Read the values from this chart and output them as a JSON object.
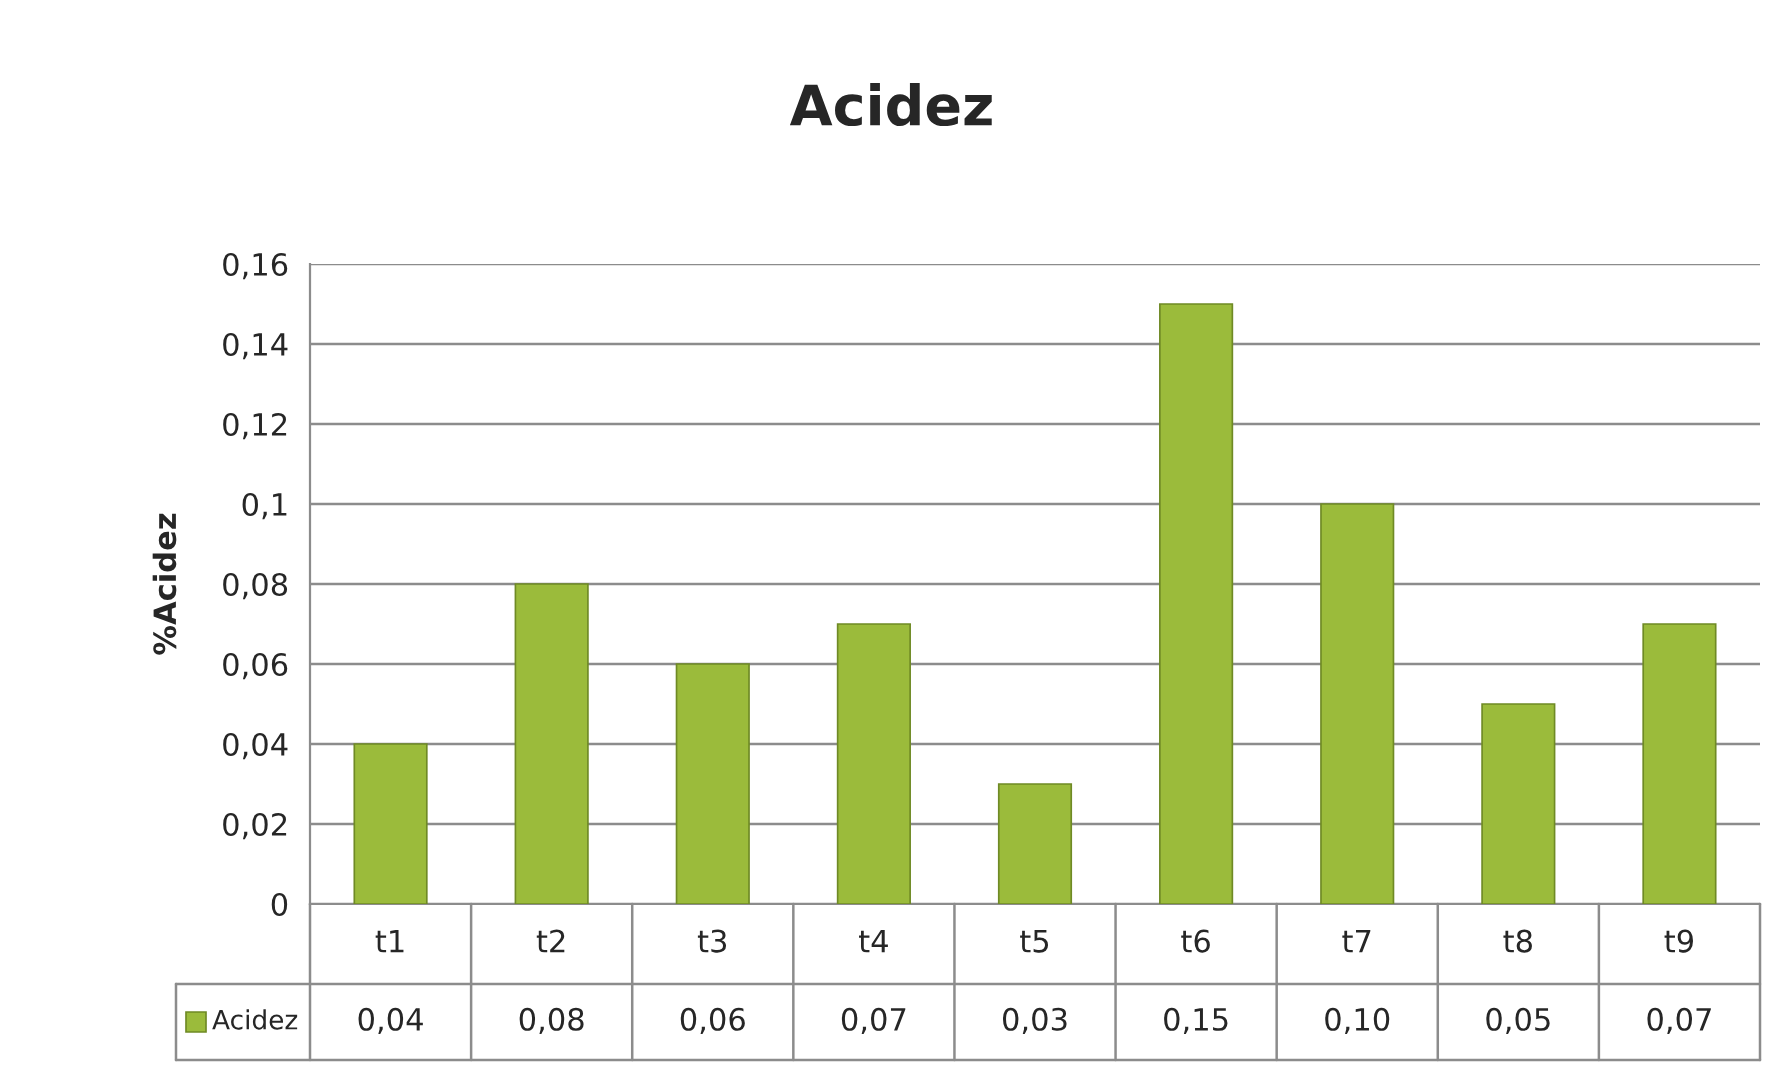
{
  "chart_data": {
    "type": "bar",
    "title": "Acidez",
    "ylabel": "%Acidez",
    "categories": [
      "t1",
      "t2",
      "t3",
      "t4",
      "t5",
      "t6",
      "t7",
      "t8",
      "t9"
    ],
    "series": [
      {
        "name": "Acidez",
        "color": "#9bbb3b",
        "values": [
          0.04,
          0.08,
          0.06,
          0.07,
          0.03,
          0.15,
          0.1,
          0.05,
          0.07
        ],
        "value_labels": [
          "0,04",
          "0,08",
          "0,06",
          "0,07",
          "0,03",
          "0,15",
          "0,10",
          "0,05",
          "0,07"
        ]
      }
    ],
    "ylim": [
      0,
      0.16
    ],
    "yticks": [
      {
        "value": 0,
        "label": "0"
      },
      {
        "value": 0.02,
        "label": "0,02"
      },
      {
        "value": 0.04,
        "label": "0,04"
      },
      {
        "value": 0.06,
        "label": "0,06"
      },
      {
        "value": 0.08,
        "label": "0,08"
      },
      {
        "value": 0.1,
        "label": "0,1"
      },
      {
        "value": 0.12,
        "label": "0,12"
      },
      {
        "value": 0.14,
        "label": "0,14"
      },
      {
        "value": 0.16,
        "label": "0,16"
      }
    ],
    "grid": "y",
    "legend": "bottom"
  }
}
